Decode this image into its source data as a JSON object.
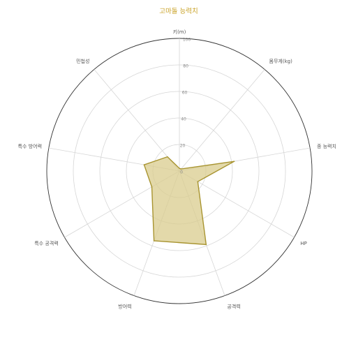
{
  "chart_data": {
    "type": "radar",
    "title": "고마돌 능력치",
    "axes": [
      "키(m)",
      "몸무게(kg)",
      "종 능력치",
      "HP",
      "공격력",
      "방어력",
      "특수 공격력",
      "특수 방어력",
      "민첩성"
    ],
    "series": [
      {
        "values": [
          2,
          2,
          42,
          16,
          59,
          56,
          24,
          27,
          14
        ]
      }
    ],
    "rlim": [
      0,
      100
    ],
    "ticks": [
      0,
      20,
      40,
      60,
      80,
      100
    ],
    "tick_labels": [
      "0",
      "20",
      "40",
      "60",
      "80",
      "100"
    ],
    "colors": {
      "title": "#c9a227",
      "line": "#a89430",
      "fill": "#d9cc8e"
    }
  }
}
